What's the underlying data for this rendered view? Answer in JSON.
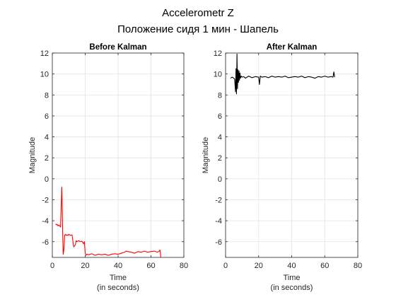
{
  "figure": {
    "title": "Accelerometr Z",
    "subtitle": "Положение сидя 1 мин - Шапель"
  },
  "chart_data": [
    {
      "type": "line",
      "title": "Before Kalman",
      "xlabel": "Time",
      "xlabel_line2": "(in seconds)",
      "ylabel": "Magnitude",
      "xlim": [
        0,
        80
      ],
      "ylim": [
        -7.5,
        12
      ],
      "xticks": [
        0,
        20,
        40,
        60,
        80
      ],
      "yticks": [
        -6,
        -4,
        -2,
        0,
        2,
        4,
        6,
        8,
        10,
        12
      ],
      "grid": true,
      "series": [
        {
          "color": "#ff0000",
          "x": [
            2.0,
            2.5,
            3.0,
            3.5,
            4.0,
            4.5,
            5.0,
            5.5,
            5.8,
            6.0,
            6.3,
            6.6,
            7.0,
            7.5,
            8.0,
            8.5,
            9.0,
            9.5,
            10.0,
            11.0,
            12.0,
            13.0,
            14.0,
            14.5,
            15.0,
            15.5,
            16.0,
            17.0,
            18.0,
            19.0,
            19.5,
            20.0,
            20.5,
            21.0,
            22.0,
            24.0,
            26.0,
            28.0,
            30.0,
            32.0,
            34.0,
            36.0,
            38.0,
            40.0,
            42.0,
            44.0,
            45.0,
            46.0,
            48.0,
            50.0,
            52.0,
            54.0,
            56.0,
            58.0,
            60.0,
            62.0,
            64.0,
            65.0,
            65.5,
            66.0
          ],
          "y": [
            -4.3,
            -4.4,
            -4.35,
            -4.5,
            -4.4,
            -4.5,
            -4.6,
            -2.0,
            -0.8,
            -2.5,
            -5.2,
            -7.2,
            -6.8,
            -5.4,
            -5.3,
            -5.4,
            -5.35,
            -5.4,
            -5.3,
            -5.4,
            -5.35,
            -6.5,
            -6.3,
            -5.9,
            -6.0,
            -5.95,
            -5.9,
            -6.0,
            -5.95,
            -6.2,
            -6.0,
            -7.1,
            -7.3,
            -7.2,
            -7.25,
            -7.15,
            -7.3,
            -7.2,
            -7.25,
            -7.2,
            -7.3,
            -7.2,
            -7.15,
            -7.2,
            -7.1,
            -7.0,
            -6.9,
            -6.95,
            -7.0,
            -7.1,
            -6.95,
            -7.0,
            -6.9,
            -7.0,
            -6.95,
            -6.9,
            -7.0,
            -6.9,
            -6.8,
            -7.5
          ]
        }
      ]
    },
    {
      "type": "line",
      "title": "After Kalman",
      "xlabel": "Time",
      "xlabel_line2": "(in seconds)",
      "ylabel": "Magnitude",
      "xlim": [
        0,
        80
      ],
      "ylim": [
        -7.5,
        12
      ],
      "xticks": [
        0,
        20,
        40,
        60,
        80
      ],
      "yticks": [
        -6,
        -4,
        -2,
        0,
        2,
        4,
        6,
        8,
        10,
        12
      ],
      "grid": true,
      "series": [
        {
          "color": "#000000",
          "x": [
            3.0,
            4.0,
            5.0,
            5.5,
            6.0,
            6.3,
            6.6,
            6.9,
            7.2,
            7.5,
            7.8,
            8.1,
            8.4,
            8.7,
            9.0,
            9.5,
            10.0,
            11.0,
            12.0,
            14.0,
            16.0,
            18.0,
            20.0,
            20.5,
            21.0,
            22.0,
            24.0,
            26.0,
            28.0,
            30.0,
            32.0,
            34.0,
            36.0,
            38.0,
            40.0,
            42.0,
            44.0,
            46.0,
            48.0,
            50.0,
            52.0,
            54.0,
            56.0,
            58.0,
            60.0,
            62.0,
            64.0,
            65.0,
            65.5,
            66.0
          ],
          "y": [
            9.6,
            9.7,
            9.6,
            9.5,
            8.3,
            10.5,
            8.1,
            11.9,
            8.6,
            10.4,
            9.2,
            10.3,
            9.4,
            10.1,
            9.6,
            9.8,
            9.7,
            9.75,
            9.6,
            9.8,
            9.65,
            9.75,
            9.7,
            9.0,
            9.8,
            9.7,
            9.75,
            9.65,
            9.8,
            9.7,
            9.75,
            9.7,
            9.8,
            9.65,
            9.7,
            9.75,
            9.7,
            9.8,
            9.65,
            9.75,
            9.7,
            9.6,
            9.75,
            9.7,
            9.8,
            9.7,
            9.75,
            9.7,
            10.2,
            9.7
          ]
        }
      ]
    }
  ]
}
